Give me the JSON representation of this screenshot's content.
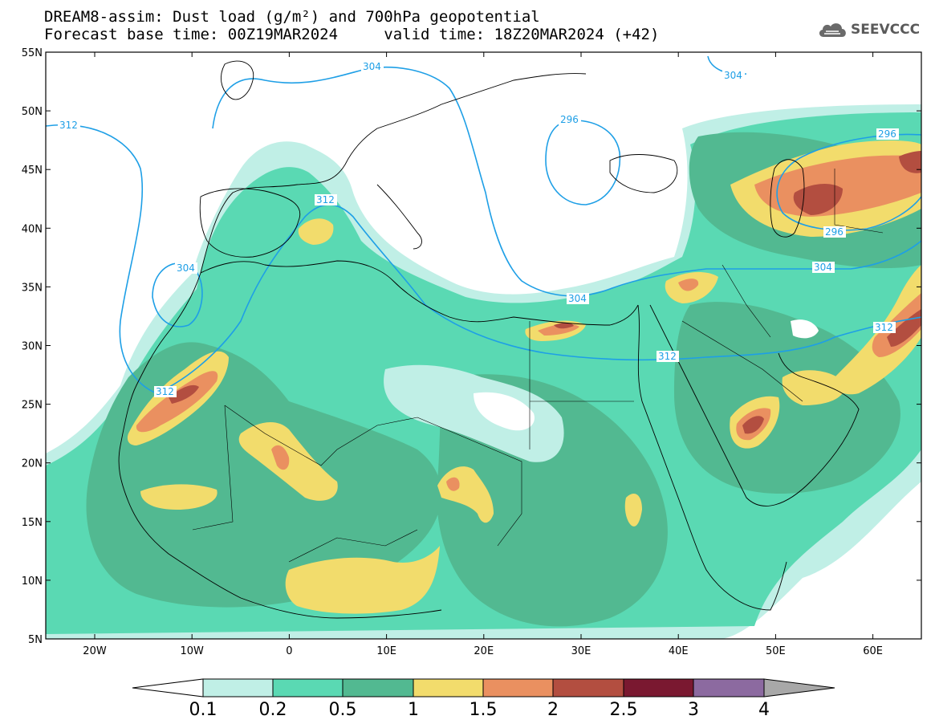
{
  "header": {
    "line1": "DREAM8-assim: Dust load (g/m²) and 700hPa geopotential",
    "line2_left": "Forecast base time: 00Z19MAR2024",
    "line2_right": "valid time: 18Z20MAR2024 (+42)"
  },
  "logo": {
    "text": "SEEVCCC",
    "icon": "cloud-icon"
  },
  "axes": {
    "lat_labels": [
      "55N",
      "50N",
      "45N",
      "40N",
      "35N",
      "30N",
      "25N",
      "20N",
      "15N",
      "10N",
      "5N"
    ],
    "lon_labels": [
      "20W",
      "10W",
      "0",
      "10E",
      "20E",
      "30E",
      "40E",
      "50E",
      "60E"
    ]
  },
  "contour_labels": [
    "304",
    "312",
    "296",
    "304",
    "312",
    "304",
    "296",
    "304",
    "312",
    "312",
    "296"
  ],
  "colorbar": {
    "labels": [
      "0.1",
      "0.2",
      "0.5",
      "1",
      "1.5",
      "2",
      "2.5",
      "3",
      "4"
    ],
    "colors": [
      "#ffffff",
      "#c0efe6",
      "#5ad9b3",
      "#52b991",
      "#f2dc6c",
      "#ea9060",
      "#b34e40",
      "#7a1830",
      "#8c6aa0",
      "#a8a8a8"
    ]
  },
  "dust_colors": {
    "c01": "#c0efe6",
    "c02": "#5ad9b3",
    "c05": "#52b991",
    "c1": "#f2dc6c",
    "c15": "#ea9060",
    "c2": "#b34e40",
    "c25": "#7a1830"
  },
  "contour_color": "#1e9fe6"
}
